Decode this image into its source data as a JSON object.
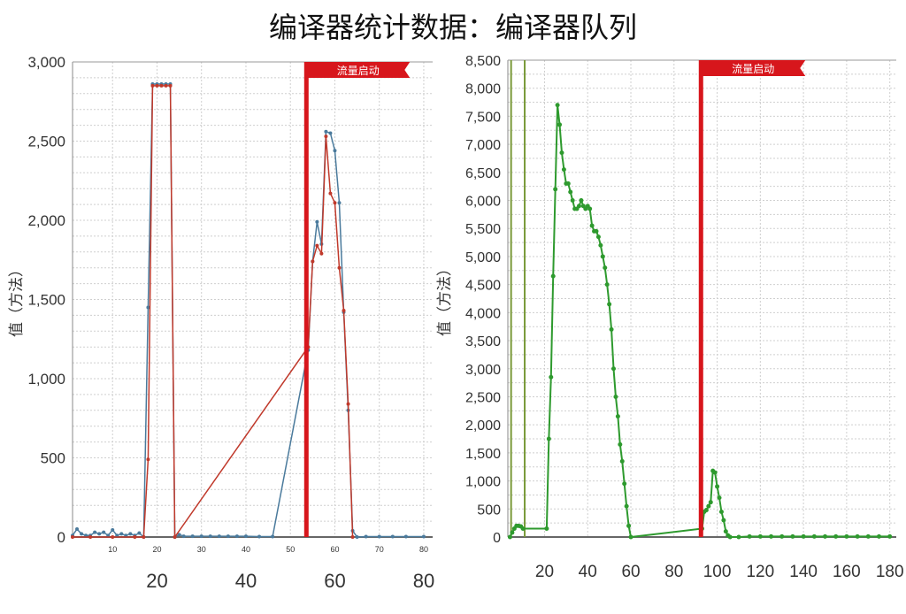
{
  "title": "编译器统计数据：编译器队列",
  "chart_data": [
    {
      "type": "line",
      "ylabel": "值（方法）",
      "ylim": [
        0,
        3000
      ],
      "xlim": [
        1,
        82
      ],
      "yticks": [
        "0",
        "500",
        "1,000",
        "1,500",
        "2,000",
        "2,500",
        "3,000"
      ],
      "ytick_values": [
        0,
        500,
        1000,
        1500,
        2000,
        2500,
        3000
      ],
      "xticks_small": [
        10,
        20,
        30,
        40,
        50,
        60,
        70,
        80
      ],
      "xticks_large": [
        20,
        40,
        60,
        80
      ],
      "grid": true,
      "marker": {
        "x": 53.6,
        "label": "流量启动",
        "color": "#d7161c"
      },
      "series": [
        {
          "color": "#4a7a9c",
          "x": [
            1,
            2,
            3,
            4,
            5,
            6,
            7,
            8,
            9,
            10,
            11,
            12,
            13,
            14,
            15,
            16,
            17,
            18,
            19,
            20,
            21,
            22,
            23,
            24,
            25,
            26,
            28,
            30,
            32,
            34,
            36,
            38,
            40,
            43,
            46,
            54,
            55,
            56,
            57,
            58,
            59,
            60,
            61,
            62,
            63,
            64,
            65,
            67,
            70,
            73,
            76,
            80
          ],
          "y": [
            10,
            50,
            20,
            10,
            10,
            30,
            20,
            30,
            10,
            45,
            10,
            20,
            10,
            20,
            10,
            25,
            0,
            1450,
            2860,
            2860,
            2860,
            2860,
            2860,
            0,
            15,
            5,
            5,
            5,
            5,
            5,
            5,
            5,
            5,
            3,
            3,
            1180,
            1740,
            1990,
            1850,
            2560,
            2550,
            2440,
            2110,
            1420,
            800,
            40,
            0,
            3,
            3,
            3,
            3,
            3
          ]
        },
        {
          "color": "#c0392b",
          "x": [
            1,
            5,
            10,
            15,
            17,
            18,
            19,
            20,
            21,
            22,
            23,
            24,
            54,
            55,
            56,
            57,
            58,
            59,
            60,
            61,
            62,
            63,
            64
          ],
          "y": [
            0,
            0,
            0,
            0,
            0,
            490,
            2850,
            2850,
            2850,
            2850,
            2850,
            0,
            1200,
            1740,
            1840,
            1790,
            2530,
            2170,
            2110,
            1700,
            1430,
            840,
            0
          ]
        }
      ]
    },
    {
      "type": "line",
      "ylabel": "值（方法）",
      "ylim": [
        0,
        8500
      ],
      "xlim": [
        3,
        183
      ],
      "yticks": [
        "0",
        "500",
        "1,000",
        "1,500",
        "2,000",
        "2,500",
        "3,000",
        "3,500",
        "4,000",
        "4,500",
        "5,000",
        "5,500",
        "6,000",
        "6,500",
        "7,000",
        "7,500",
        "8,000",
        "8,500"
      ],
      "ytick_values": [
        0,
        500,
        1000,
        1500,
        2000,
        2500,
        3000,
        3500,
        4000,
        4500,
        5000,
        5500,
        6000,
        6500,
        7000,
        7500,
        8000,
        8500
      ],
      "xticks_large": [
        20,
        40,
        60,
        80,
        100,
        120,
        140,
        160,
        180
      ],
      "grid": true,
      "marker": {
        "x": 92.5,
        "label": "流量启动",
        "color": "#d7161c"
      },
      "guides": [
        {
          "x": 4.5,
          "color": "#7a9a3a"
        },
        {
          "x": 10.8,
          "color": "#7a9a3a"
        }
      ],
      "series": [
        {
          "color": "#2e9a2e",
          "x": [
            4,
            5,
            6,
            7,
            8,
            9,
            10,
            21,
            22,
            23,
            24,
            25,
            26,
            27,
            28,
            29,
            30,
            31,
            32,
            33,
            34,
            35,
            36,
            37,
            38,
            39,
            40,
            41,
            42,
            43,
            44,
            45,
            46,
            47,
            48,
            49,
            50,
            51,
            52,
            53,
            54,
            55,
            56,
            57,
            58,
            59,
            60,
            93,
            94,
            95,
            96,
            97,
            98,
            99,
            100,
            101,
            102,
            103,
            104,
            105,
            106,
            110,
            115,
            120,
            125,
            130,
            135,
            140,
            145,
            150,
            155,
            160,
            165,
            170,
            175,
            180
          ],
          "y": [
            0,
            80,
            150,
            200,
            200,
            190,
            150,
            150,
            1750,
            2850,
            4650,
            6200,
            7700,
            7350,
            6850,
            6550,
            6300,
            6300,
            6150,
            6000,
            5850,
            5850,
            5900,
            6000,
            5900,
            5850,
            5900,
            5850,
            5550,
            5450,
            5450,
            5350,
            5200,
            5000,
            4800,
            4500,
            4150,
            3700,
            3000,
            2500,
            2150,
            1650,
            1350,
            950,
            550,
            200,
            0,
            150,
            450,
            480,
            550,
            620,
            1180,
            1150,
            900,
            700,
            450,
            300,
            100,
            30,
            0,
            0,
            10,
            10,
            10,
            10,
            10,
            10,
            10,
            10,
            10,
            10,
            10,
            10,
            10,
            10
          ]
        }
      ]
    }
  ]
}
